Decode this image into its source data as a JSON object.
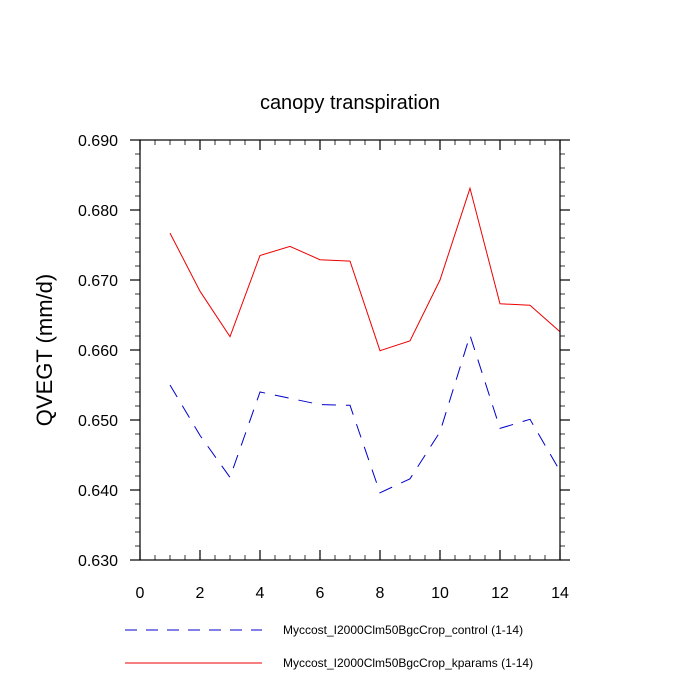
{
  "chart_data": {
    "type": "line",
    "title": "canopy transpiration",
    "xlabel": "",
    "ylabel": "QVEGT  (mm/d)",
    "xlim": [
      0,
      14
    ],
    "ylim": [
      0.63,
      0.69
    ],
    "xticks": [
      0,
      2,
      4,
      6,
      8,
      10,
      12,
      14
    ],
    "xtick_labels": [
      "0",
      "2",
      "4",
      "6",
      "8",
      "10",
      "12",
      "14"
    ],
    "yticks": [
      0.63,
      0.64,
      0.65,
      0.66,
      0.67,
      0.68,
      0.69
    ],
    "ytick_labels": [
      "0.630",
      "0.640",
      "0.650",
      "0.660",
      "0.670",
      "0.680",
      "0.690"
    ],
    "grid": false,
    "legend_position": "bottom",
    "x": [
      1,
      2,
      3,
      4,
      5,
      6,
      7,
      8,
      9,
      10,
      11,
      12,
      13,
      14
    ],
    "series": [
      {
        "name": "Myccost_I2000Clm50BgcCrop_control (1-14)",
        "color": "#0000cc",
        "dash": "dashed",
        "values": [
          0.655,
          0.6478,
          0.6418,
          0.654,
          0.6531,
          0.6522,
          0.6521,
          0.6396,
          0.6416,
          0.6483,
          0.6621,
          0.6488,
          0.6501,
          0.6427
        ]
      },
      {
        "name": "Myccost_I2000Clm50BgcCrop_kparams (1-14)",
        "color": "#ee0000",
        "dash": "solid",
        "values": [
          0.6767,
          0.6684,
          0.6619,
          0.6735,
          0.6748,
          0.6729,
          0.6727,
          0.6599,
          0.6613,
          0.67,
          0.6831,
          0.6666,
          0.6664,
          0.6626
        ]
      }
    ]
  }
}
